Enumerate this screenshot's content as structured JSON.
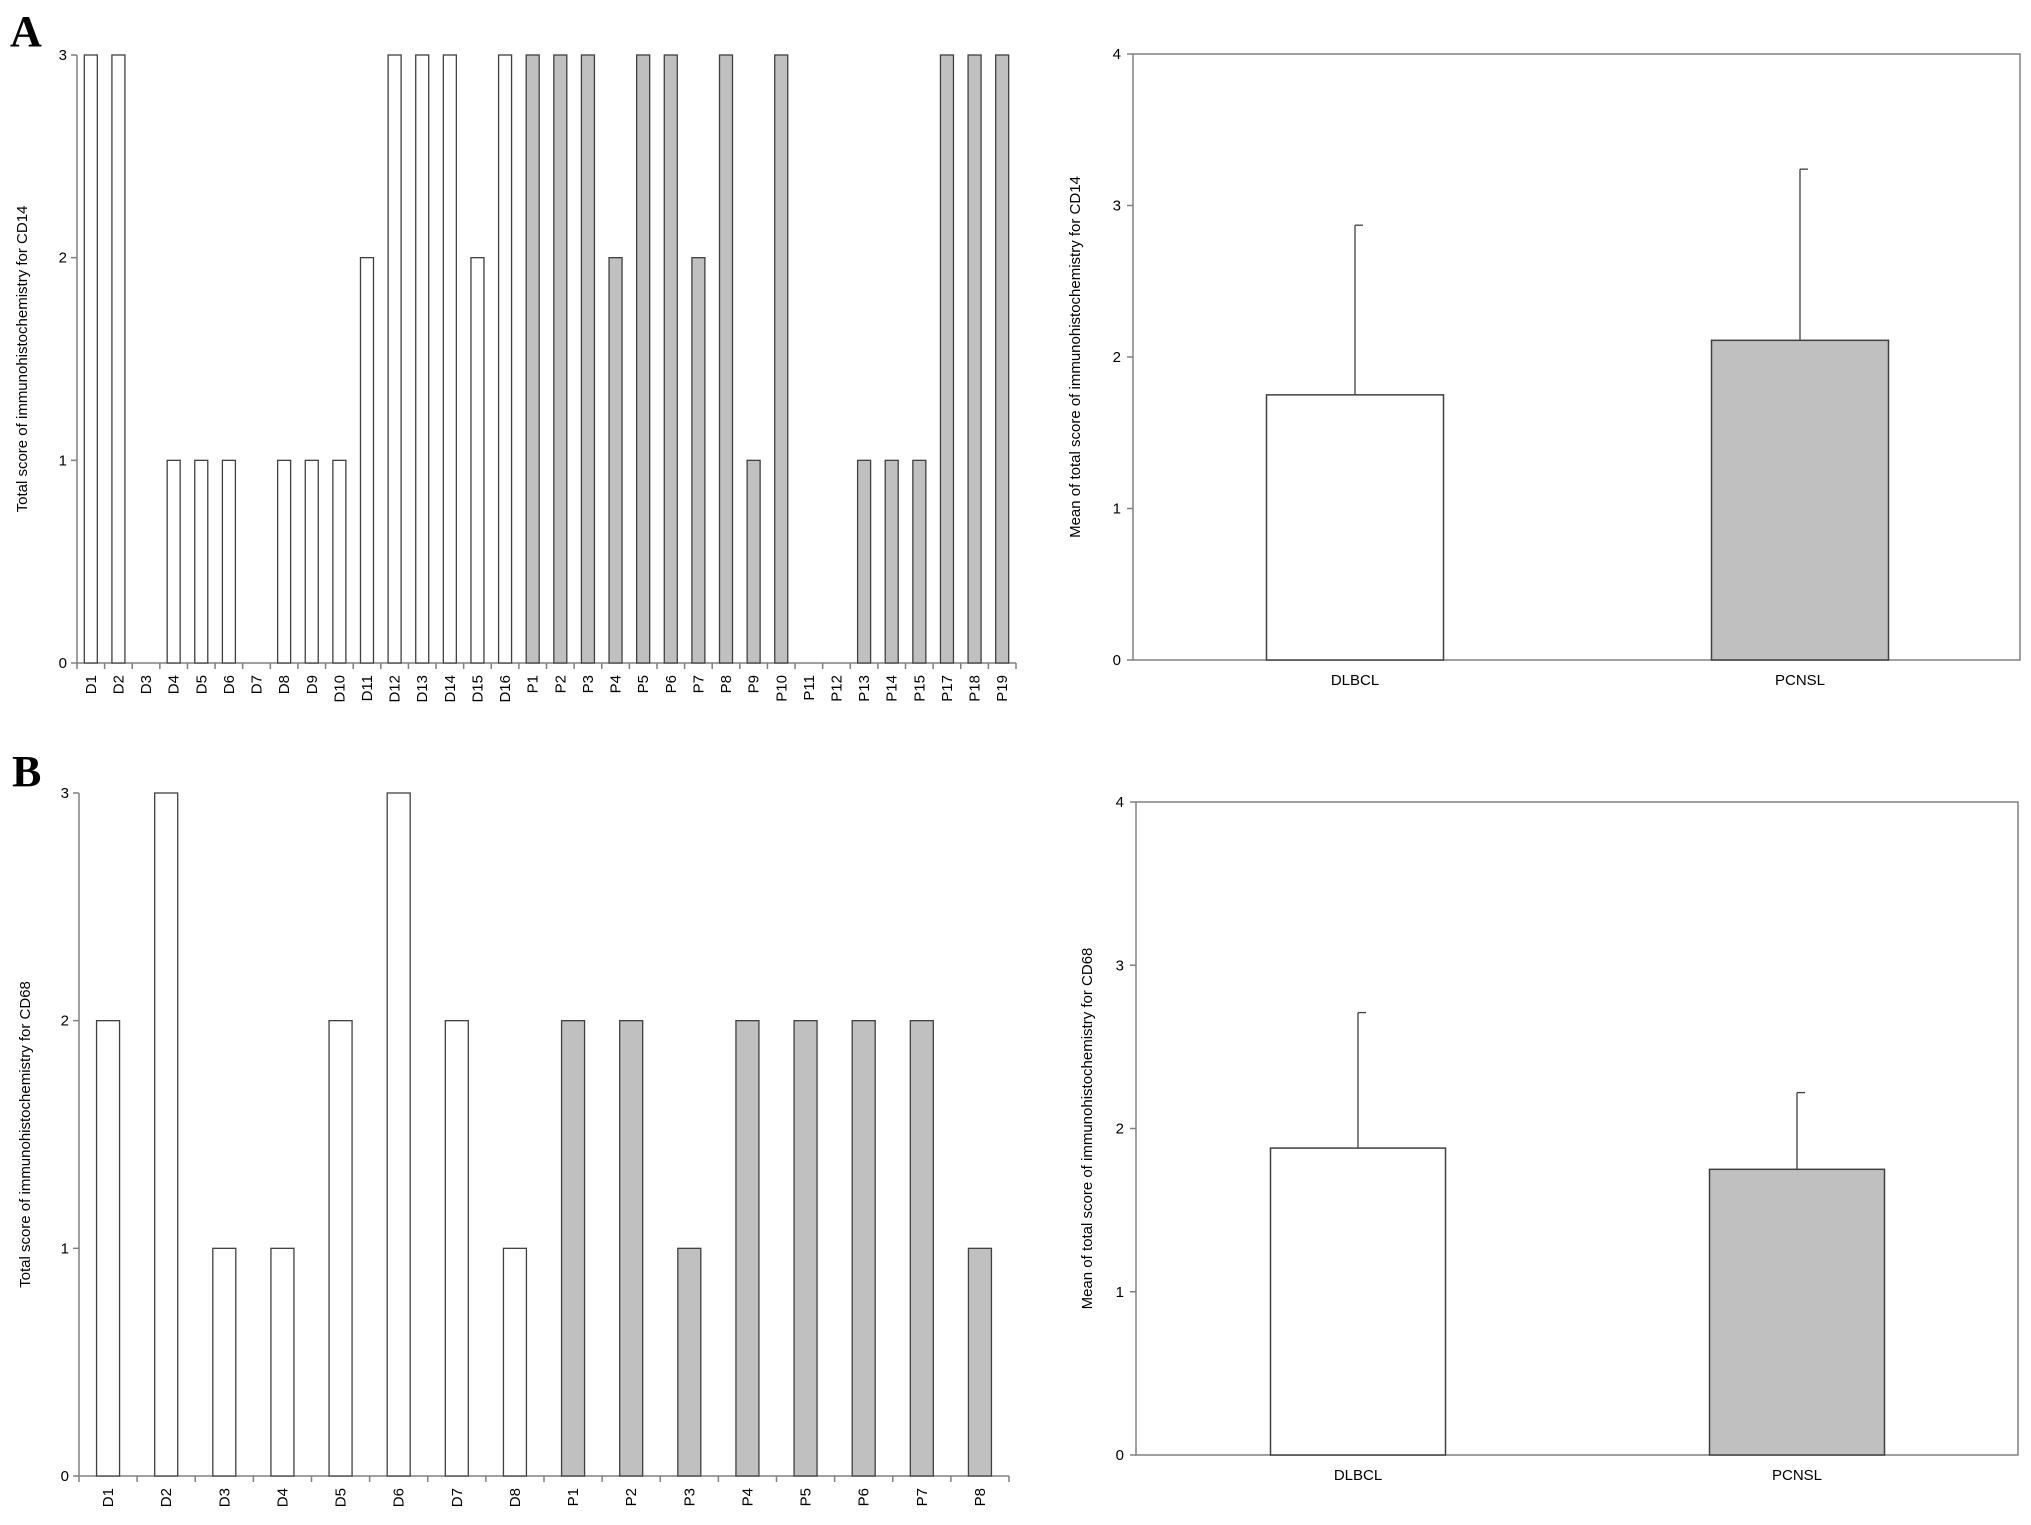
{
  "panels": [
    {
      "letter": "A"
    },
    {
      "letter": "B"
    }
  ],
  "colors": {
    "dlbcl_fill": "#ffffff",
    "pcnsl_fill": "#c0c0c0",
    "bar_stroke": "#404040",
    "axis": "#808080"
  },
  "chart_data": [
    {
      "type": "bar",
      "panel": "A",
      "ylabel": "Total score of immunohistochemistry for CD14",
      "ylim": [
        0,
        3
      ],
      "yticks": [
        0,
        1,
        2,
        3
      ],
      "categories": [
        "D1",
        "D2",
        "D3",
        "D4",
        "D5",
        "D6",
        "D7",
        "D8",
        "D9",
        "D10",
        "D11",
        "D12",
        "D13",
        "D14",
        "D15",
        "D16",
        "P1",
        "P2",
        "P3",
        "P4",
        "P5",
        "P6",
        "P7",
        "P8",
        "P9",
        "P10",
        "P11",
        "P12",
        "P13",
        "P14",
        "P15",
        "P17",
        "P18",
        "P19"
      ],
      "values": [
        3,
        3,
        0,
        1,
        1,
        1,
        0,
        1,
        1,
        1,
        2,
        3,
        3,
        3,
        2,
        3,
        3,
        3,
        3,
        2,
        3,
        3,
        2,
        3,
        1,
        3,
        0,
        0,
        1,
        1,
        1,
        3,
        3,
        3
      ],
      "groups": [
        "DLBCL",
        "DLBCL",
        "DLBCL",
        "DLBCL",
        "DLBCL",
        "DLBCL",
        "DLBCL",
        "DLBCL",
        "DLBCL",
        "DLBCL",
        "DLBCL",
        "DLBCL",
        "DLBCL",
        "DLBCL",
        "DLBCL",
        "DLBCL",
        "PCNSL",
        "PCNSL",
        "PCNSL",
        "PCNSL",
        "PCNSL",
        "PCNSL",
        "PCNSL",
        "PCNSL",
        "PCNSL",
        "PCNSL",
        "PCNSL",
        "PCNSL",
        "PCNSL",
        "PCNSL",
        "PCNSL",
        "PCNSL",
        "PCNSL",
        "PCNSL"
      ],
      "grid": false
    },
    {
      "type": "bar",
      "panel": "A",
      "ylabel": "Mean of total score of immunohistochemistry for CD14",
      "ylim": [
        0,
        4
      ],
      "yticks": [
        0,
        1,
        2,
        3,
        4
      ],
      "categories": [
        "DLBCL",
        "PCNSL"
      ],
      "values": [
        1.75,
        2.11
      ],
      "error_upper": [
        1.12,
        1.13
      ],
      "grid": false
    },
    {
      "type": "bar",
      "panel": "B",
      "ylabel": "Total score of immunohistochemistry for CD68",
      "ylim": [
        0,
        3
      ],
      "yticks": [
        0,
        1,
        2,
        3
      ],
      "categories": [
        "D1",
        "D2",
        "D3",
        "D4",
        "D5",
        "D6",
        "D7",
        "D8",
        "P1",
        "P2",
        "P3",
        "P4",
        "P5",
        "P6",
        "P7",
        "P8"
      ],
      "values": [
        2,
        3,
        1,
        1,
        2,
        3,
        2,
        1,
        2,
        2,
        1,
        2,
        2,
        2,
        2,
        1
      ],
      "groups": [
        "DLBCL",
        "DLBCL",
        "DLBCL",
        "DLBCL",
        "DLBCL",
        "DLBCL",
        "DLBCL",
        "DLBCL",
        "PCNSL",
        "PCNSL",
        "PCNSL",
        "PCNSL",
        "PCNSL",
        "PCNSL",
        "PCNSL",
        "PCNSL"
      ],
      "grid": false
    },
    {
      "type": "bar",
      "panel": "B",
      "ylabel": "Mean of total score of immunohistochemistry for CD68",
      "ylim": [
        0,
        4
      ],
      "yticks": [
        0,
        1,
        2,
        3,
        4
      ],
      "categories": [
        "DLBCL",
        "PCNSL"
      ],
      "values": [
        1.88,
        1.75
      ],
      "error_upper": [
        0.83,
        0.47
      ],
      "grid": false
    }
  ]
}
